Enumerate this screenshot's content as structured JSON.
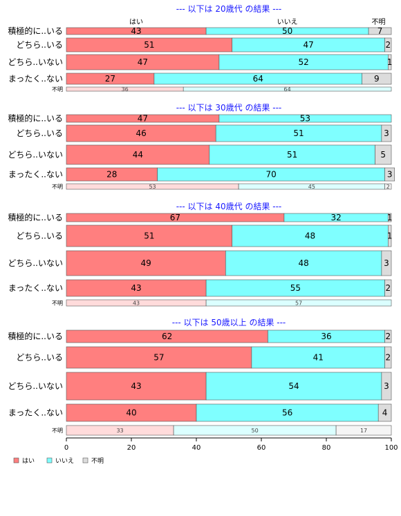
{
  "chart_data": {
    "type": "bar",
    "orientation": "horizontal",
    "stacked": true,
    "xlim": [
      0,
      100
    ],
    "x_ticks": [
      0,
      20,
      40,
      60,
      80,
      100
    ],
    "legend_position": "bottom-left",
    "column_headers": [
      "はい",
      "いいえ",
      "不明"
    ],
    "series": [
      {
        "name": "はい",
        "color": "#ff7f7f"
      },
      {
        "name": "いいえ",
        "color": "#7fffff"
      },
      {
        "name": "不明",
        "color": "#dcdcdc"
      }
    ],
    "panels": [
      {
        "title": "--- 以下は 20歳代 の結果 ---",
        "rows": [
          {
            "label": "積極的に..いる",
            "values": [
              43,
              50,
              7
            ]
          },
          {
            "label": "どちら..いる",
            "values": [
              51,
              47,
              2
            ]
          },
          {
            "label": "どちら..いない",
            "values": [
              47,
              52,
              1
            ]
          },
          {
            "label": "まったく..ない",
            "values": [
              27,
              64,
              9
            ]
          },
          {
            "label": "不明",
            "values": [
              36,
              64,
              0
            ],
            "small": true
          }
        ]
      },
      {
        "title": "--- 以下は 30歳代 の結果 ---",
        "rows": [
          {
            "label": "積極的に..いる",
            "values": [
              47,
              53,
              0
            ]
          },
          {
            "label": "どちら..いる",
            "values": [
              46,
              51,
              3
            ]
          },
          {
            "label": "どちら..いない",
            "values": [
              44,
              51,
              5
            ]
          },
          {
            "label": "まったく..ない",
            "values": [
              28,
              70,
              3
            ]
          },
          {
            "label": "不明",
            "values": [
              53,
              45,
              2
            ],
            "small": true
          }
        ]
      },
      {
        "title": "--- 以下は 40歳代 の結果 ---",
        "rows": [
          {
            "label": "積極的に..いる",
            "values": [
              67,
              32,
              1
            ]
          },
          {
            "label": "どちら..いる",
            "values": [
              51,
              48,
              1
            ]
          },
          {
            "label": "どちら..いない",
            "values": [
              49,
              48,
              3
            ]
          },
          {
            "label": "まったく..ない",
            "values": [
              43,
              55,
              2
            ]
          },
          {
            "label": "不明",
            "values": [
              43,
              57,
              0
            ],
            "small": true
          }
        ]
      },
      {
        "title": "--- 以下は 50歳以上 の結果 ---",
        "rows": [
          {
            "label": "積極的に..いる",
            "values": [
              62,
              36,
              2
            ]
          },
          {
            "label": "どちら..いる",
            "values": [
              57,
              41,
              2
            ]
          },
          {
            "label": "どちら..いない",
            "values": [
              43,
              54,
              3
            ]
          },
          {
            "label": "まったく..ない",
            "values": [
              40,
              56,
              4
            ]
          },
          {
            "label": "不明",
            "values": [
              33,
              50,
              17
            ],
            "small": true
          }
        ]
      }
    ]
  }
}
